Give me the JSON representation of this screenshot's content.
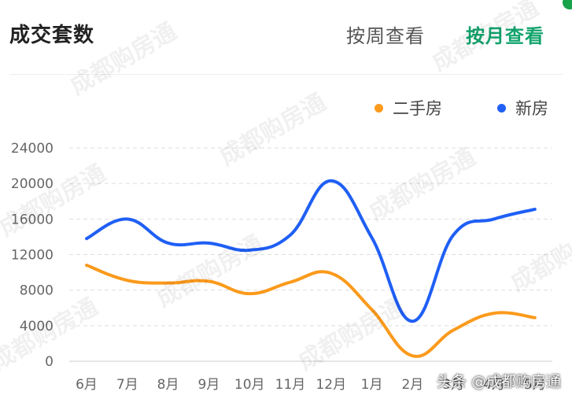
{
  "header": {
    "title": "成交套数",
    "tab_week": "按周查看",
    "tab_month": "按月查看"
  },
  "watermark_text": "成都购房通",
  "credit": "头条 @成都购房通",
  "colors": {
    "active_tab": "#13a36d",
    "second_hand": "#fb9a1c",
    "new_house": "#1f5ff5",
    "grid": "#dddddd",
    "tick": "#666666"
  },
  "chart_data": {
    "type": "line",
    "categories": [
      "6月",
      "7月",
      "8月",
      "9月",
      "10月",
      "11月",
      "12月",
      "1月",
      "2月",
      "3月",
      "4月",
      "5月"
    ],
    "series": [
      {
        "name": "二手房",
        "color": "#fb9a1c",
        "values": [
          10800,
          9100,
          8800,
          9000,
          7600,
          8900,
          9900,
          5800,
          600,
          3500,
          5400,
          4900
        ]
      },
      {
        "name": "新房",
        "color": "#1f5ff5",
        "values": [
          13800,
          16000,
          13300,
          13300,
          12500,
          14200,
          20300,
          13900,
          4500,
          14200,
          16000,
          17100
        ]
      }
    ],
    "yticks": [
      0,
      4000,
      8000,
      12000,
      16000,
      20000,
      24000
    ],
    "ylim": [
      0,
      24000
    ],
    "grid": true,
    "legend_position": "top-right",
    "smooth": true
  }
}
